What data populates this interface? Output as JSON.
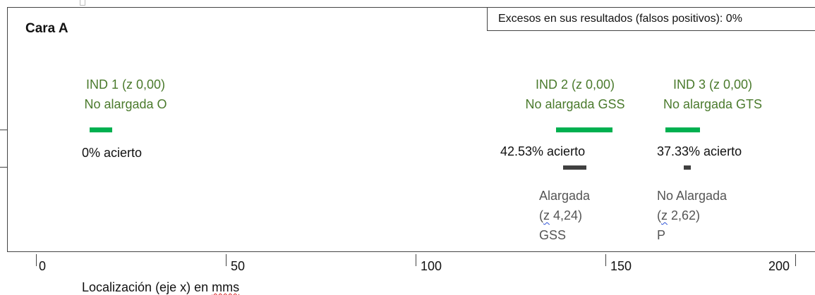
{
  "title": "Cara A",
  "false_positives": "Excesos en sus resultados (falsos positivos): 0%",
  "indications": [
    {
      "line1": "IND 1 (z 0,00)",
      "line2": "No alargada O",
      "accuracy": "0% acierto"
    },
    {
      "line1": "IND 2 (z 0,00)",
      "line2": "No alargada GSS",
      "accuracy": "42.53% acierto"
    },
    {
      "line1": "IND 3 (z 0,00)",
      "line2": "No alargada GTS",
      "accuracy": "37.33% acierto"
    }
  ],
  "results": [
    {
      "line1": "Alargada",
      "z": "z",
      "zval": " 4,24)",
      "line3": "GSS"
    },
    {
      "line1": "No Alargada",
      "z": "z",
      "zval": " 2,62)",
      "line3": "P"
    }
  ],
  "axis": {
    "ticks": [
      "0",
      "50",
      "100",
      "150",
      "200"
    ],
    "label_pre": "Localización (eje x) en ",
    "label_unit": "mms"
  },
  "colors": {
    "indication": "#00b050",
    "result": "#404040",
    "label_green": "#4a7a2c"
  }
}
